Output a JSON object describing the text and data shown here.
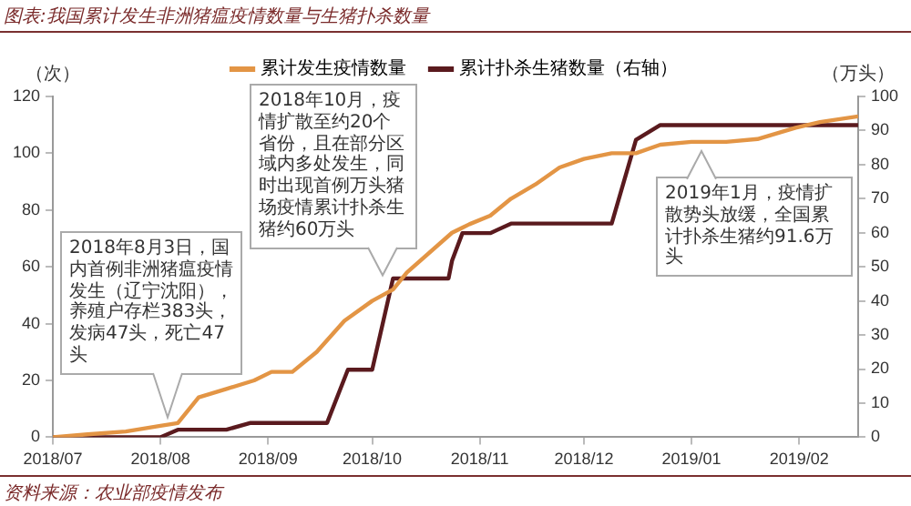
{
  "chart_data": {
    "type": "line",
    "title": "图表:我国累计发生非洲猪瘟疫情数量与生猪扑杀数量",
    "ylabel": "（次）",
    "y2label": "（万头）",
    "xlim": [
      "2018-07-01",
      "2019-02-18"
    ],
    "xticks": [
      {
        "value": "2018-07-01",
        "label": "2018/07"
      },
      {
        "value": "2018-08-01",
        "label": "2018/08"
      },
      {
        "value": "2018-09-01",
        "label": "2018/09"
      },
      {
        "value": "2018-10-01",
        "label": "2018/10"
      },
      {
        "value": "2018-11-01",
        "label": "2018/11"
      },
      {
        "value": "2018-12-01",
        "label": "2018/12"
      },
      {
        "value": "2019-01-01",
        "label": "2019/01"
      },
      {
        "value": "2019-02-01",
        "label": "2019/02"
      }
    ],
    "ylim": [
      0,
      120
    ],
    "yticks": [
      0,
      20,
      40,
      60,
      80,
      100,
      120
    ],
    "y2lim": [
      0,
      100
    ],
    "y2ticks": [
      0,
      10,
      20,
      30,
      40,
      50,
      60,
      70,
      80,
      90,
      100
    ],
    "grid": false,
    "legend": "top",
    "series": [
      {
        "name": "累计发生疫情数量",
        "color": "#e39545",
        "x": [
          "2018-07-01",
          "2018-07-11",
          "2018-07-22",
          "2018-08-01",
          "2018-08-06",
          "2018-08-12",
          "2018-08-20",
          "2018-08-28",
          "2018-09-02",
          "2018-09-08",
          "2018-09-15",
          "2018-09-23",
          "2018-10-01",
          "2018-10-07",
          "2018-10-11",
          "2018-10-24",
          "2018-10-29",
          "2018-11-04",
          "2018-11-10",
          "2018-11-17",
          "2018-11-24",
          "2018-12-01",
          "2018-12-09",
          "2018-12-16",
          "2018-12-23",
          "2019-01-01",
          "2019-01-11",
          "2019-01-20",
          "2019-01-31",
          "2019-02-07",
          "2019-02-18"
        ],
        "values": [
          0,
          1,
          2,
          4,
          5,
          14,
          17,
          20,
          23,
          23,
          30,
          41,
          48,
          52,
          58,
          72,
          75,
          78,
          84,
          89,
          95,
          98,
          100,
          100,
          103,
          104,
          104,
          105,
          109,
          111,
          113
        ]
      },
      {
        "name": "累计扑杀生猪数量（右轴）",
        "color": "#5a1a1e",
        "axis": "y2",
        "x": [
          "2018-07-01",
          "2018-08-01",
          "2018-08-06",
          "2018-08-20",
          "2018-08-27",
          "2018-09-18",
          "2018-09-24",
          "2018-10-01",
          "2018-10-07",
          "2018-10-23",
          "2018-10-24",
          "2018-10-27",
          "2018-11-04",
          "2018-11-10",
          "2018-12-09",
          "2018-12-16",
          "2018-12-23",
          "2019-02-18"
        ],
        "values": [
          0,
          0,
          2.2,
          2.2,
          4.2,
          4.2,
          19.8,
          19.8,
          46.6,
          46.6,
          51.8,
          59.9,
          59.9,
          62.7,
          62.7,
          87.3,
          91.6,
          91.6
        ]
      }
    ],
    "annotations": [
      {
        "text": "2018年8月3日，国内首例非洲猪瘟疫情发生（辽宁沈阳），养殖户存栏383头，发病47头，死亡47头",
        "x": "2018-08-03",
        "y": 7
      },
      {
        "text": "2018年10月，疫情扩散至约20个省份，且在部分区域内多处发生，同时出现首例万头猪场疫情累计扑杀生猪约60万头",
        "x": "2018-10-04",
        "y": 57
      },
      {
        "text": "2019年1月，疫情扩散势头放缓，全国累计扑杀生猪约91.6万头",
        "x": "2019-01-04",
        "y": 101
      },
      "资料来源：农业部疫情发布"
    ]
  }
}
